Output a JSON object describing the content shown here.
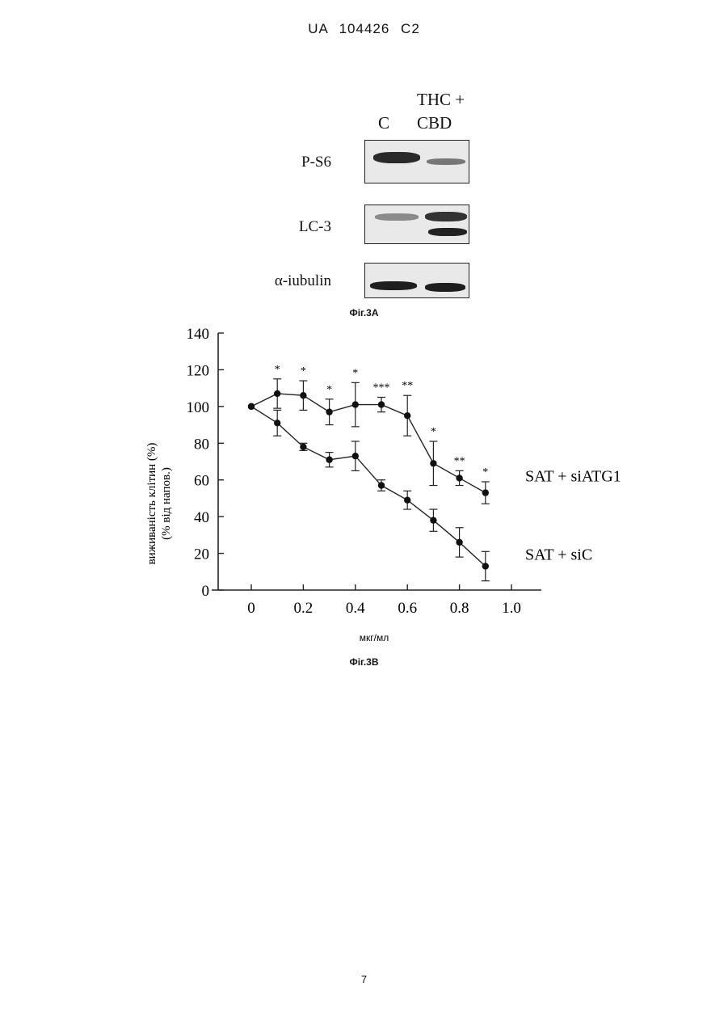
{
  "header": {
    "text": "UA   104426   C2"
  },
  "figure_a": {
    "lane_c": "C",
    "lane_treat_1": "THC +",
    "lane_treat_2": "CBD",
    "rows": [
      "P-S6",
      "LC-3",
      "α-iubulin"
    ],
    "caption": "Фіг.3А"
  },
  "figure_b": {
    "caption": "Фіг.3В"
  },
  "page_number": "7",
  "chart_data": {
    "type": "line",
    "ylabel": "виживаність клітин (%)",
    "ylabel2": "(% від напов.)",
    "xlabel": "мкг/мл",
    "xlim": [
      0,
      1.0
    ],
    "ylim": [
      0,
      140
    ],
    "x_ticks": [
      "0",
      "0.2",
      "0.4",
      "0.6",
      "0.8",
      "1.0"
    ],
    "y_ticks": [
      "0",
      "20",
      "40",
      "60",
      "80",
      "100",
      "120",
      "140"
    ],
    "x": [
      0,
      0.1,
      0.2,
      0.3,
      0.4,
      0.5,
      0.6,
      0.7,
      0.8,
      0.9
    ],
    "series": [
      {
        "name": "SAT + siATG1",
        "values": [
          100,
          107,
          106,
          97,
          101,
          101,
          95,
          69,
          61,
          53
        ],
        "errors": [
          0,
          8,
          8,
          7,
          12,
          4,
          11,
          12,
          4,
          6
        ],
        "significance": [
          "",
          "*",
          "*",
          "*",
          "*",
          "***",
          "**",
          "*",
          "**",
          "*"
        ]
      },
      {
        "name": "SAT + siC",
        "values": [
          100,
          91,
          78,
          71,
          73,
          57,
          49,
          38,
          26,
          13
        ],
        "errors": [
          0,
          7,
          2,
          4,
          8,
          3,
          5,
          6,
          8,
          8
        ]
      }
    ]
  }
}
